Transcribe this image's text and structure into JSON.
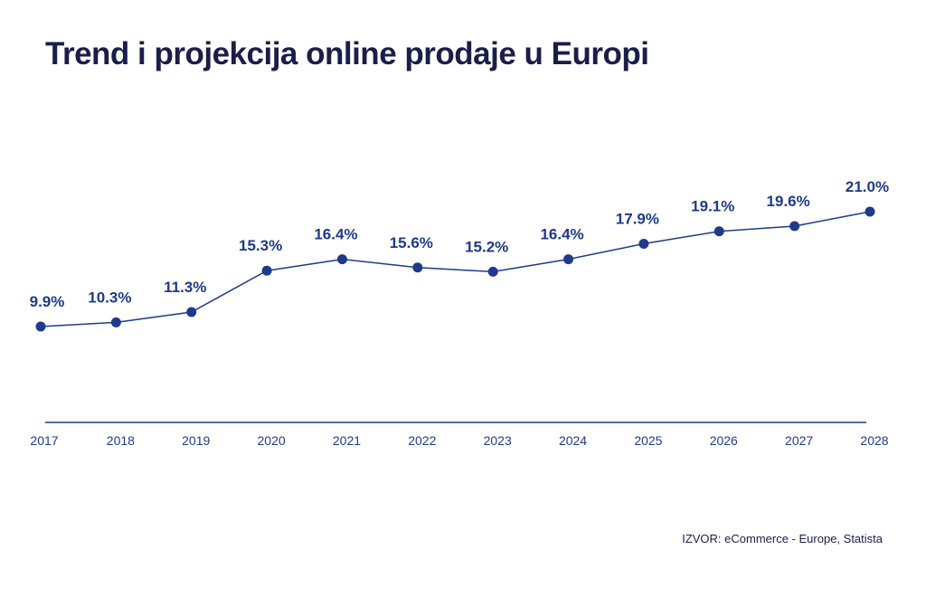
{
  "chart_data": {
    "type": "line",
    "title": "Trend i projekcija online prodaje u Europi",
    "xlabel": "",
    "ylabel": "",
    "categories": [
      "2017",
      "2018",
      "2019",
      "2020",
      "2021",
      "2022",
      "2023",
      "2024",
      "2025",
      "2026",
      "2027",
      "2028"
    ],
    "series": [
      {
        "values": [
          9.9,
          10.3,
          11.3,
          15.3,
          16.4,
          15.6,
          15.2,
          16.4,
          17.9,
          19.1,
          19.6,
          21.0
        ],
        "data_labels": [
          "9.9%",
          "10.3%",
          "11.3%",
          "15.3%",
          "16.4%",
          "15.6%",
          "15.2%",
          "16.4%",
          "17.9%",
          "19.1%",
          "19.6%",
          "21.0%"
        ]
      }
    ],
    "grid": false,
    "legend": "none",
    "colors": {
      "line": "#1f3a8a",
      "marker": "#1f3a8a",
      "labels": "#1f3a8a",
      "axis": "#1f3a8a",
      "title": "#1a1e4a"
    }
  },
  "source": "IZVOR: eCommerce - Europe, Statista"
}
